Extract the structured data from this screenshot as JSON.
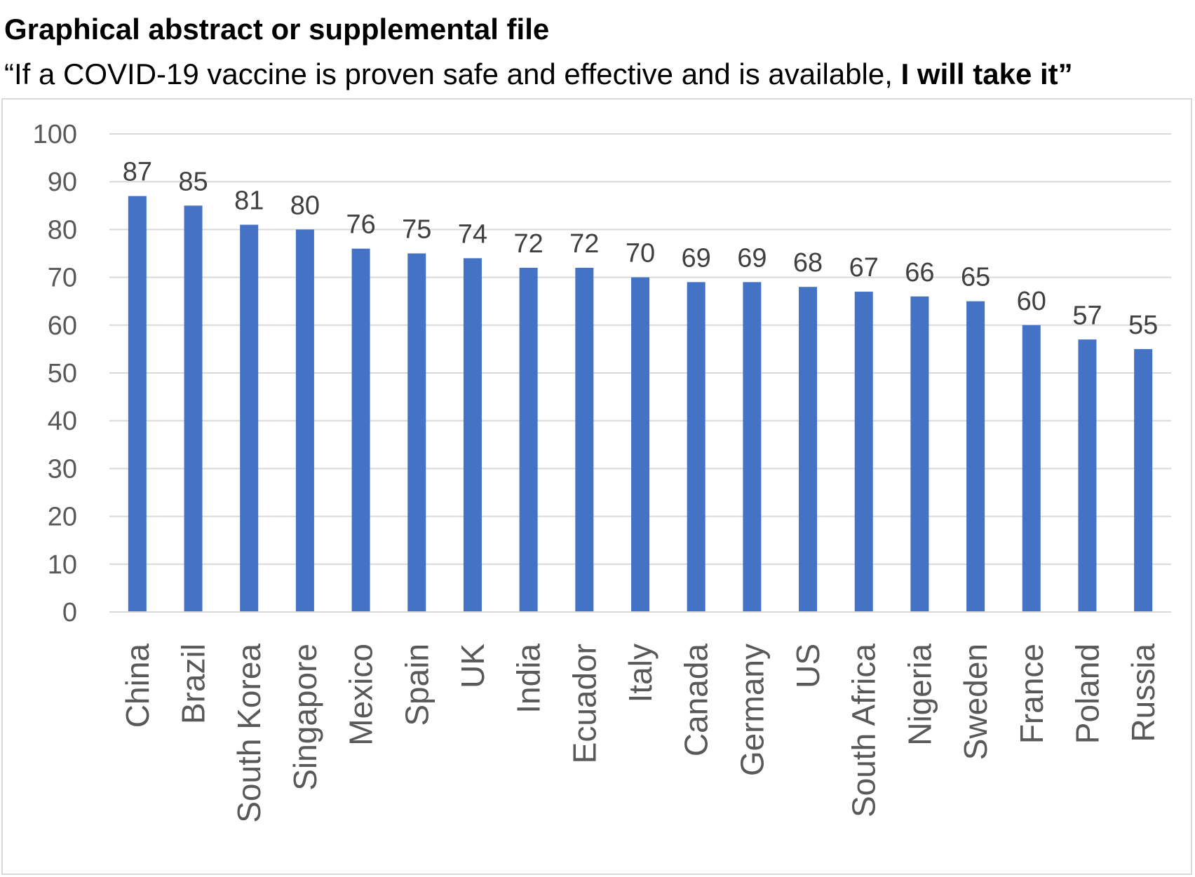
{
  "header": {
    "title": "Graphical abstract or supplemental file",
    "subtitle_lead": "“If a COVID-19 vaccine is proven safe and effective and is available, ",
    "subtitle_emphasis": "I will take it”"
  },
  "chart_data": {
    "type": "bar",
    "categories": [
      "China",
      "Brazil",
      "South Korea",
      "Singapore",
      "Mexico",
      "Spain",
      "UK",
      "India",
      "Ecuador",
      "Italy",
      "Canada",
      "Germany",
      "US",
      "South Africa",
      "Nigeria",
      "Sweden",
      "France",
      "Poland",
      "Russia"
    ],
    "values": [
      87,
      85,
      81,
      80,
      76,
      75,
      74,
      72,
      72,
      70,
      69,
      69,
      68,
      67,
      66,
      65,
      60,
      57,
      55
    ],
    "ylim": [
      0,
      100
    ],
    "yticks": [
      0,
      10,
      20,
      30,
      40,
      50,
      60,
      70,
      80,
      90,
      100
    ],
    "grid": true,
    "legend": "none",
    "data_labels": true,
    "bar_color": "#4472C4",
    "grid_color": "#d9d9d9"
  }
}
